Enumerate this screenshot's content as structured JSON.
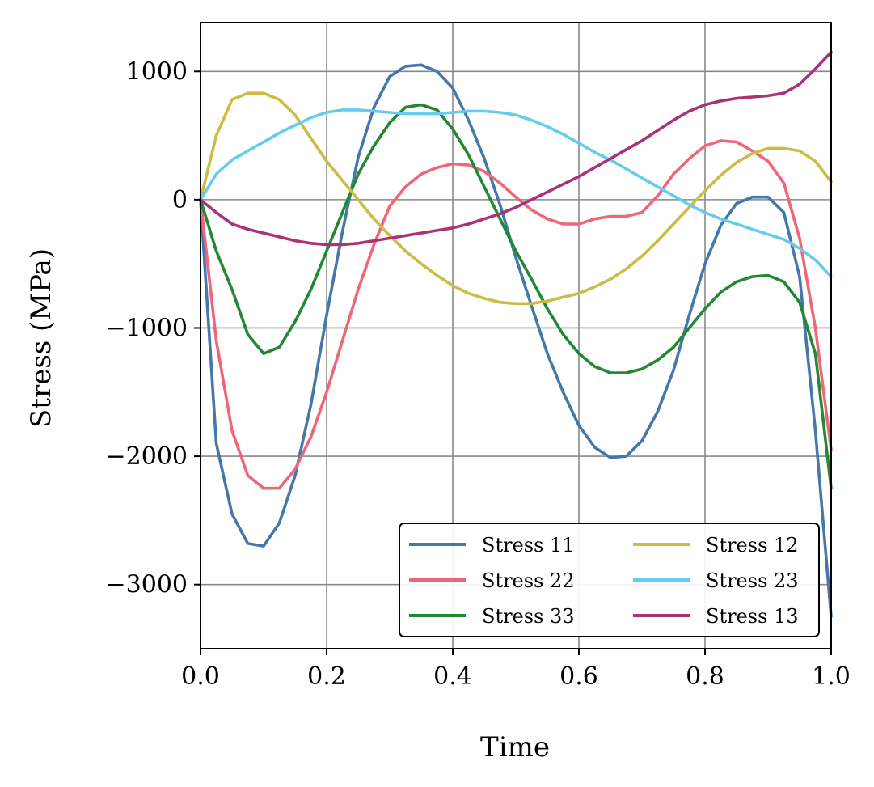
{
  "chart_data": {
    "type": "line",
    "title": "",
    "xlabel": "Time",
    "ylabel": "Stress (MPa)",
    "xlim": [
      0.0,
      1.0
    ],
    "ylim": [
      -3500,
      1380
    ],
    "xticks": [
      0.0,
      0.2,
      0.4,
      0.6,
      0.8,
      1.0
    ],
    "xtick_labels": [
      "0.0",
      "0.2",
      "0.4",
      "0.6",
      "0.8",
      "1.0"
    ],
    "yticks": [
      -3000,
      -2000,
      -1000,
      0,
      1000
    ],
    "ytick_labels": [
      "−3000",
      "−2000",
      "−1000",
      "0",
      "1000"
    ],
    "grid": true,
    "legend_position": "lower-right",
    "legend_columns": 2,
    "x": [
      0,
      0.025,
      0.05,
      0.075,
      0.1,
      0.125,
      0.15,
      0.175,
      0.2,
      0.225,
      0.25,
      0.275,
      0.3,
      0.325,
      0.35,
      0.375,
      0.4,
      0.425,
      0.45,
      0.475,
      0.5,
      0.525,
      0.55,
      0.575,
      0.6,
      0.625,
      0.65,
      0.675,
      0.7,
      0.725,
      0.75,
      0.775,
      0.8,
      0.825,
      0.85,
      0.875,
      0.9,
      0.925,
      0.95,
      0.975,
      1.0
    ],
    "series": [
      {
        "name": "Stress 11",
        "color": "#4477aa",
        "values": [
          0,
          -1900,
          -2450,
          -2680,
          -2700,
          -2520,
          -2150,
          -1600,
          -900,
          -250,
          330,
          720,
          960,
          1040,
          1050,
          1000,
          870,
          620,
          320,
          -40,
          -450,
          -830,
          -1200,
          -1500,
          -1760,
          -1930,
          -2010,
          -2000,
          -1880,
          -1650,
          -1330,
          -900,
          -500,
          -200,
          -30,
          20,
          20,
          -100,
          -600,
          -1800,
          -3250
        ]
      },
      {
        "name": "Stress 22",
        "color": "#ee6677",
        "values": [
          0,
          -1100,
          -1800,
          -2150,
          -2250,
          -2250,
          -2100,
          -1850,
          -1500,
          -1100,
          -700,
          -350,
          -50,
          100,
          200,
          250,
          280,
          270,
          220,
          130,
          20,
          -80,
          -150,
          -190,
          -190,
          -150,
          -130,
          -130,
          -100,
          30,
          200,
          320,
          420,
          460,
          450,
          380,
          300,
          130,
          -300,
          -1000,
          -1950
        ]
      },
      {
        "name": "Stress 33",
        "color": "#228833",
        "values": [
          0,
          -400,
          -700,
          -1050,
          -1200,
          -1150,
          -950,
          -700,
          -400,
          -100,
          200,
          420,
          600,
          720,
          740,
          700,
          550,
          350,
          100,
          -150,
          -400,
          -620,
          -850,
          -1050,
          -1200,
          -1300,
          -1350,
          -1350,
          -1320,
          -1250,
          -1150,
          -1000,
          -850,
          -720,
          -640,
          -600,
          -590,
          -640,
          -800,
          -1200,
          -2250
        ]
      },
      {
        "name": "Stress 12",
        "color": "#ccbb44",
        "values": [
          0,
          500,
          780,
          830,
          830,
          780,
          660,
          480,
          300,
          150,
          0,
          -150,
          -280,
          -400,
          -500,
          -590,
          -670,
          -730,
          -770,
          -800,
          -810,
          -810,
          -790,
          -760,
          -730,
          -680,
          -620,
          -540,
          -440,
          -320,
          -190,
          -60,
          70,
          190,
          290,
          360,
          400,
          400,
          380,
          300,
          140
        ]
      },
      {
        "name": "Stress 23",
        "color": "#66ccee",
        "values": [
          0,
          200,
          310,
          380,
          450,
          520,
          580,
          640,
          680,
          700,
          700,
          690,
          680,
          670,
          670,
          670,
          680,
          690,
          690,
          680,
          660,
          620,
          570,
          510,
          440,
          370,
          310,
          240,
          170,
          100,
          30,
          -40,
          -100,
          -150,
          -190,
          -230,
          -270,
          -310,
          -380,
          -470,
          -600
        ]
      },
      {
        "name": "Stress 13",
        "color": "#aa3377",
        "values": [
          0,
          -100,
          -190,
          -230,
          -260,
          -290,
          -320,
          -340,
          -350,
          -350,
          -340,
          -320,
          -300,
          -280,
          -260,
          -240,
          -220,
          -190,
          -150,
          -110,
          -60,
          0,
          60,
          120,
          180,
          250,
          320,
          390,
          460,
          540,
          620,
          690,
          740,
          770,
          790,
          800,
          810,
          830,
          900,
          1020,
          1150
        ]
      }
    ]
  }
}
